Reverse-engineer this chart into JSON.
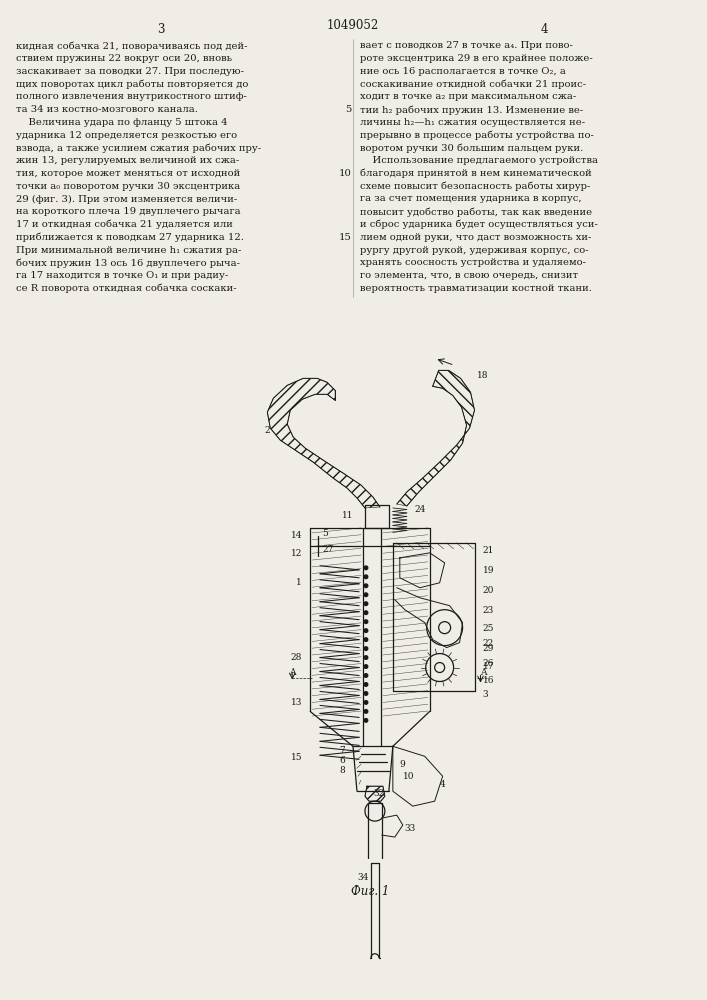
{
  "page_width": 7.07,
  "page_height": 10.0,
  "bg_color": "#f0ede6",
  "text_color": "#1a1a1a",
  "patent_number": "1049052",
  "page_numbers": [
    "3",
    "4"
  ],
  "col1_text": [
    "кидная собачка 21, поворачиваясь под дей-",
    "ствием пружины 22 вокруг оси 20, вновь",
    "заскакивает за поводки 27. При последую-",
    "щих поворотах цикл работы повторяется до",
    "полного извлечения внутрикостного штиф-",
    "та 34 из костно-мозгового канала.",
    "    Величина удара по фланцу 5 штока 4",
    "ударника 12 определяется резкостью его",
    "взвода, а также усилием сжатия рабочих пру-",
    "жин 13, регулируемых величиной их сжа-",
    "тия, которое может меняться от исходной",
    "точки a₀ поворотом ручки 30 эксцентрика",
    "29 (фиг. 3). При этом изменяется величи-",
    "на короткого плеча 19 двуплечего рычага",
    "17 и откидная собачка 21 удаляется или",
    "приближается к поводкам 27 ударника 12.",
    "При минимальной величине h₁ сжатия ра-",
    "бочих пружин 13 ось 16 двуплечего рыча-",
    "га 17 находится в точке O₁ и при радиу-",
    "се R поворота откидная собачка соскаки-"
  ],
  "col2_text": [
    "вает с поводков 27 в точке a₄. При пово-",
    "роте эксцентрика 29 в его крайнее положе-",
    "ние ось 16 располагается в точке O₂, а",
    "соскакивание откидной собачки 21 проис-",
    "ходит в точке a₂ при максимальном сжа-",
    "тии h₂ рабочих пружин 13. Изменение ве-",
    "личины h₂—h₁ сжатия осуществляется не-",
    "прерывно в процессе работы устройства по-",
    "воротом ручки 30 большим пальцем руки.",
    "    Использование предлагаемого устройства",
    "благодаря принятой в нем кинематической",
    "схеме повысит безопасность работы хирур-",
    "га за счет помещения ударника в корпус,",
    "повысит удобство работы, так как введение",
    "и сброс ударника будет осуществляться уси-",
    "лием одной руки, что даст возможность хи-",
    "рургу другой рукой, удерживая корпус, со-",
    "хранять соосность устройства и удаляемо-",
    "го элемента, что, в свою очередь, снизит",
    "вероятность травматизации костной ткани."
  ],
  "fig_caption": "Фиг. 1",
  "draw_color": "#1a1a1a",
  "hatch_color": "#444444"
}
